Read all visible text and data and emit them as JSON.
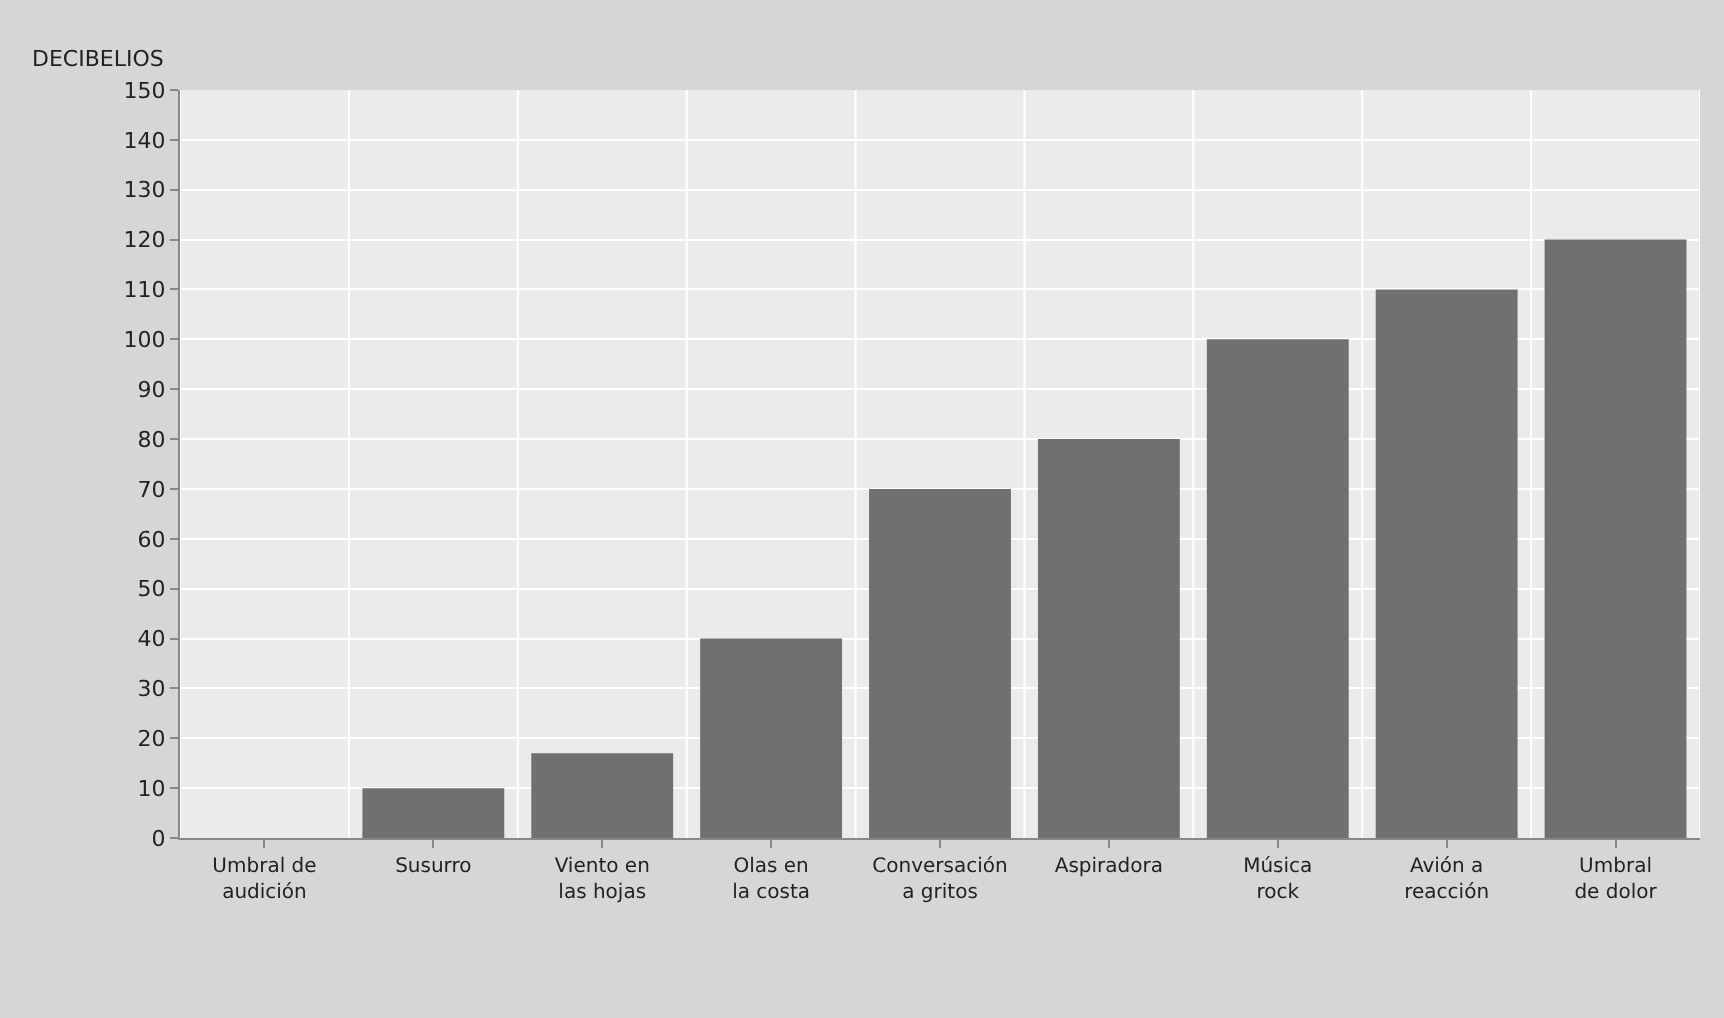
{
  "chart_data": {
    "type": "bar",
    "ylabel": "DECIBELIOS",
    "categories": [
      "Umbral de audición",
      "Susurro",
      "Viento en las hojas",
      "Olas en la costa",
      "Conversación a gritos",
      "Aspiradora",
      "Música rock",
      "Avión a reacción",
      "Umbral de dolor"
    ],
    "values": [
      0,
      10,
      17,
      40,
      70,
      80,
      100,
      110,
      120
    ],
    "color": "#707070",
    "ylim": [
      0,
      150
    ],
    "yticks": [
      0,
      10,
      20,
      30,
      40,
      50,
      60,
      70,
      80,
      90,
      100,
      110,
      120,
      130,
      140,
      150
    ],
    "grid": true
  }
}
